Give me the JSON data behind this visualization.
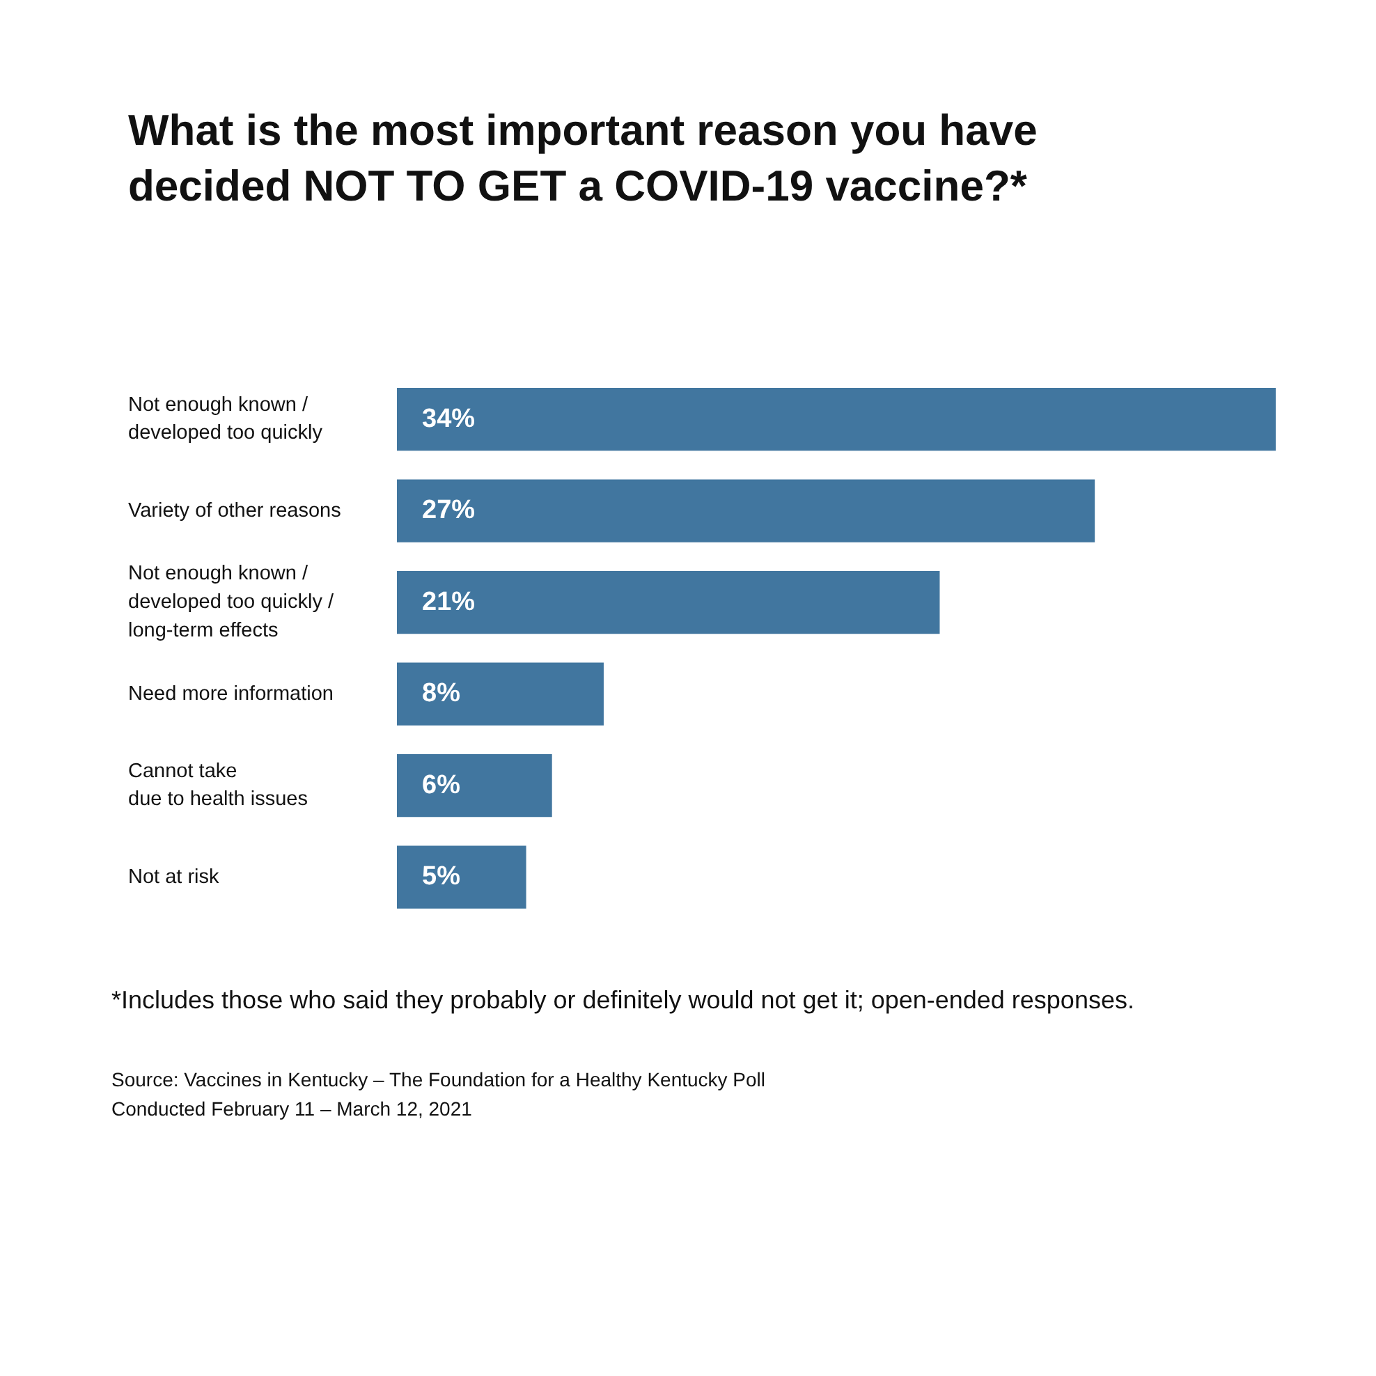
{
  "chart_data": {
    "type": "bar",
    "orientation": "horizontal",
    "title": "What is the most important reason you have decided NOT TO GET a COVID-19 vaccine?*",
    "categories": [
      "Not enough known /\ndeveloped too quickly",
      "Variety of other reasons",
      "Not enough known /\ndeveloped too quickly /\nlong-term effects",
      "Need more information",
      "Cannot take\ndue to health issues",
      "Not at risk"
    ],
    "values": [
      34,
      27,
      21,
      8,
      6,
      5
    ],
    "value_labels": [
      "34%",
      "27%",
      "21%",
      "8%",
      "6%",
      "5%"
    ],
    "color": "#41769f",
    "legend": false,
    "annotations": [
      "*Includes those who said they probably or definitely would not get it; open-ended responses.",
      "Source: Vaccines in Kentucky – The Foundation for a Healthy Kentucky Poll",
      "Conducted February 11 – March 12, 2021"
    ]
  }
}
